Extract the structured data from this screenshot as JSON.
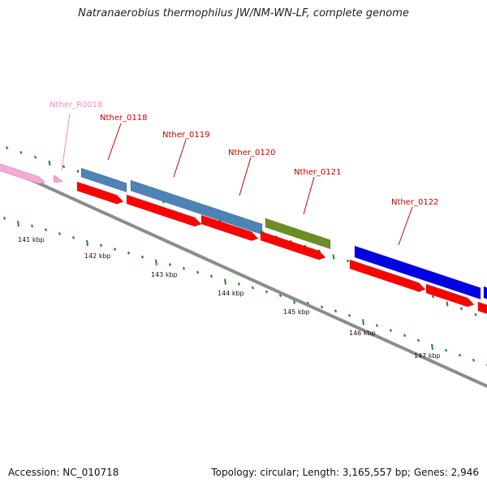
{
  "title": "Natranaerobius thermophilus JW/NM-WN-LF, complete genome",
  "footer": {
    "accession": "Accession: NC_010718",
    "summary": "Topology: circular; Length: 3,165,557 bp; Genes: 2,946"
  },
  "colors": {
    "backbone": "#8c8c8c",
    "ruler_tick": "#1f8a1f",
    "cds": "#ff0000",
    "label_red": "#cc0000",
    "label_pink": "#f08cc0"
  },
  "features": [
    {
      "name": "Nther_R0018",
      "color": "#f7a8d4",
      "label_color": "#f08cc0"
    },
    {
      "name": "Nther_0118",
      "color": "#4d83b5",
      "label_color": "#cc0000"
    },
    {
      "name": "Nther_0119",
      "color": "#4d83b5",
      "label_color": "#cc0000"
    },
    {
      "name": "Nther_0120",
      "color": "#6b8e23",
      "label_color": "#cc0000"
    },
    {
      "name": "Nther_0121",
      "color": "#0000e0",
      "label_color": "#cc0000"
    },
    {
      "name": "Nther_0122",
      "color": "#0000e0",
      "label_color": "#cc0000"
    }
  ],
  "ruler_labels": [
    "141 kbp",
    "142 kbp",
    "143 kbp",
    "144 kbp",
    "145 kbp",
    "146 kbp",
    "147 kbp"
  ]
}
